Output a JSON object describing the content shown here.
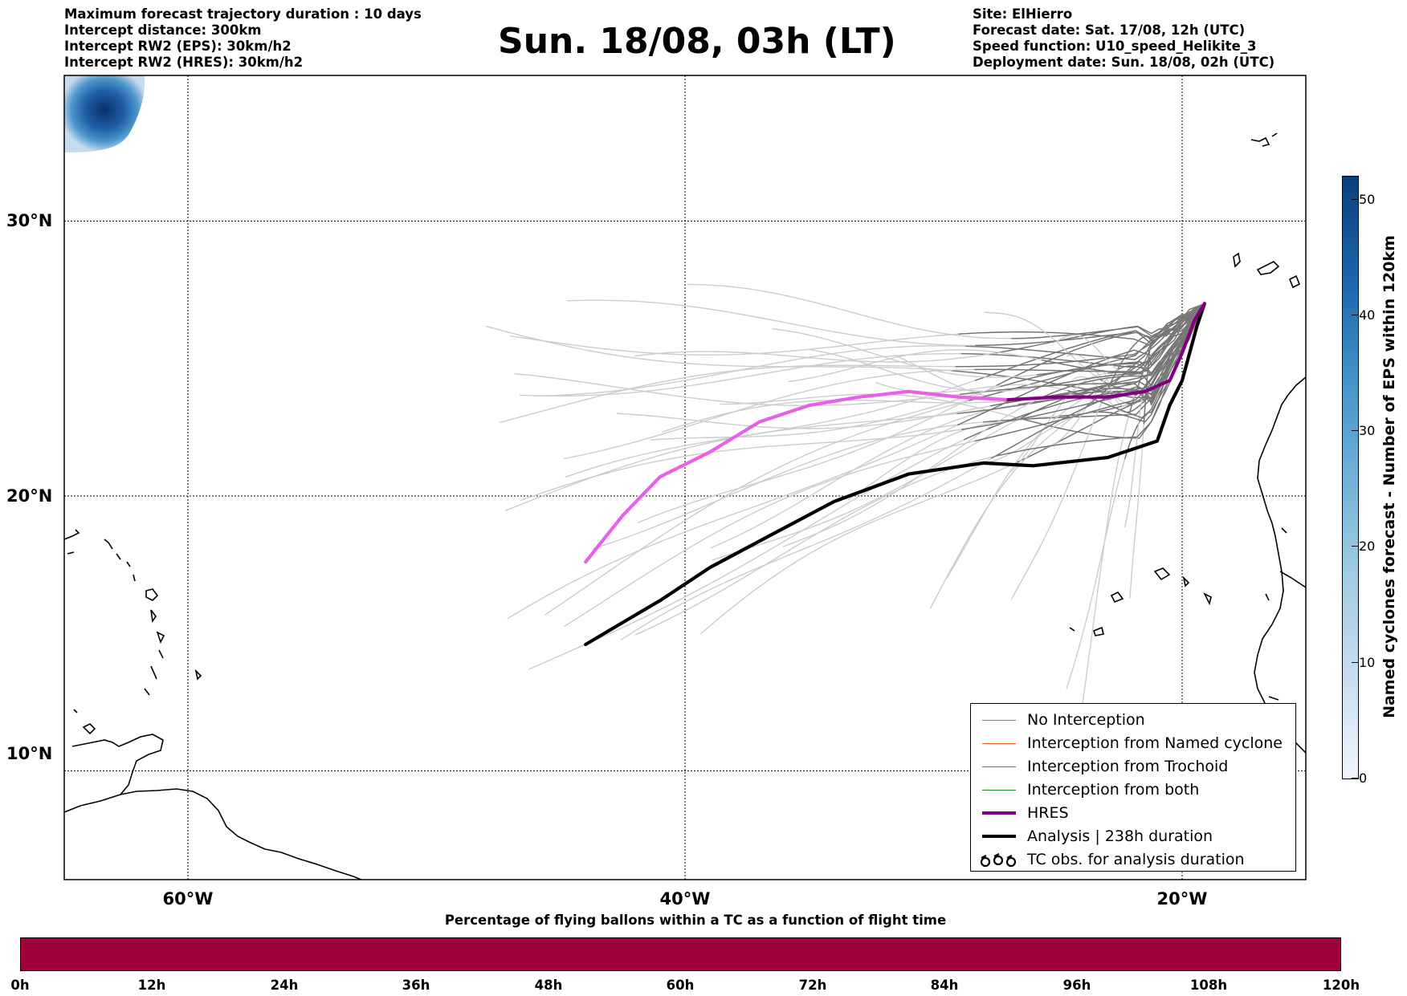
{
  "header": {
    "left_lines": [
      "Maximum forecast trajectory duration : 10 days",
      "Intercept distance: 300km",
      "Intercept RW2 (EPS):  30km/h2",
      "Intercept RW2 (HRES): 30km/h2"
    ],
    "title": "Sun. 18/08, 03h (LT)",
    "right_lines": [
      "Site: ElHierro",
      "Forecast date: Sat. 17/08, 12h (UTC)",
      "Speed function: U10_speed_Helikite_3",
      "Deployment date: Sun. 18/08, 02h (UTC)"
    ]
  },
  "map": {
    "lat_labels": [
      "30°N",
      "20°N",
      "10°N"
    ],
    "lon_labels": [
      "60°W",
      "40°W",
      "20°W"
    ],
    "lat_values": [
      30,
      20,
      10
    ],
    "lon_values": [
      -60,
      -40,
      -20
    ]
  },
  "legend": {
    "items": [
      {
        "label": "No Interception",
        "color": "#808080",
        "style": "thin"
      },
      {
        "label": "Interception from Named cyclone",
        "color": "#e8601c",
        "style": "thin"
      },
      {
        "label": "Interception from Trochoid",
        "color": "#808000",
        "style": "thin"
      },
      {
        "label": "Interception from both",
        "color": "#228b22",
        "style": "thin"
      },
      {
        "label": "HRES",
        "color": "#800080",
        "style": "thick"
      },
      {
        "label": "Analysis | 238h duration",
        "color": "#000000",
        "style": "thick"
      },
      {
        "label": "TC obs. for analysis duration",
        "color": "#000000",
        "style": "symbol"
      }
    ]
  },
  "colors": {
    "eps_light": "#cccccc",
    "eps_dark": "#707070",
    "hres_early": "#e860e8",
    "hres_late": "#800080",
    "analysis": "#000000",
    "time_bar": "#a0003c"
  },
  "colorbar_vertical": {
    "label": "Named cyclones forecast - Number of EPS within 120km",
    "ticks": [
      "0",
      "10",
      "20",
      "30",
      "40",
      "50"
    ],
    "min": 0,
    "max": 52
  },
  "colorbar_horizontal": {
    "title": "Percentage of flying ballons within a TC as a function of flight time",
    "ticks": [
      "0h",
      "12h",
      "24h",
      "36h",
      "48h",
      "60h",
      "72h",
      "84h",
      "96h",
      "108h",
      "120h"
    ]
  },
  "chart_data": {
    "type": "line",
    "title": "Sun. 18/08, 03h (LT)",
    "xlabel": "",
    "ylabel": "",
    "x_axis": {
      "units": "longitude",
      "ticks": [
        -60,
        -40,
        -20
      ]
    },
    "y_axis": {
      "units": "latitude",
      "ticks": [
        10,
        20,
        30
      ]
    },
    "series": [
      {
        "name": "HRES",
        "lon": [
          -19.1,
          -19.5,
          -20.0,
          -20.5,
          -21.5,
          -23.0,
          -25.0,
          -27.0,
          -29.0,
          -31.0,
          -33.0,
          -35.0,
          -37.0,
          -39.0,
          -41.0,
          -42.5,
          -44.0
        ],
        "lat": [
          27.0,
          26.4,
          25.2,
          24.2,
          23.8,
          23.6,
          23.6,
          23.5,
          23.6,
          23.8,
          23.6,
          23.3,
          22.7,
          21.6,
          20.7,
          19.3,
          17.6
        ]
      },
      {
        "name": "Analysis | 238h duration",
        "lon": [
          -19.1,
          -19.4,
          -19.7,
          -20.0,
          -20.5,
          -21.0,
          -23.0,
          -26.0,
          -28.0,
          -31.0,
          -34.0,
          -36.5,
          -39.0,
          -41.0,
          -42.5,
          -44.0
        ],
        "lat": [
          27.0,
          26.2,
          25.2,
          24.2,
          23.3,
          22.0,
          21.4,
          21.1,
          21.2,
          20.8,
          19.8,
          18.6,
          17.4,
          16.2,
          15.4,
          14.6
        ]
      }
    ]
  }
}
